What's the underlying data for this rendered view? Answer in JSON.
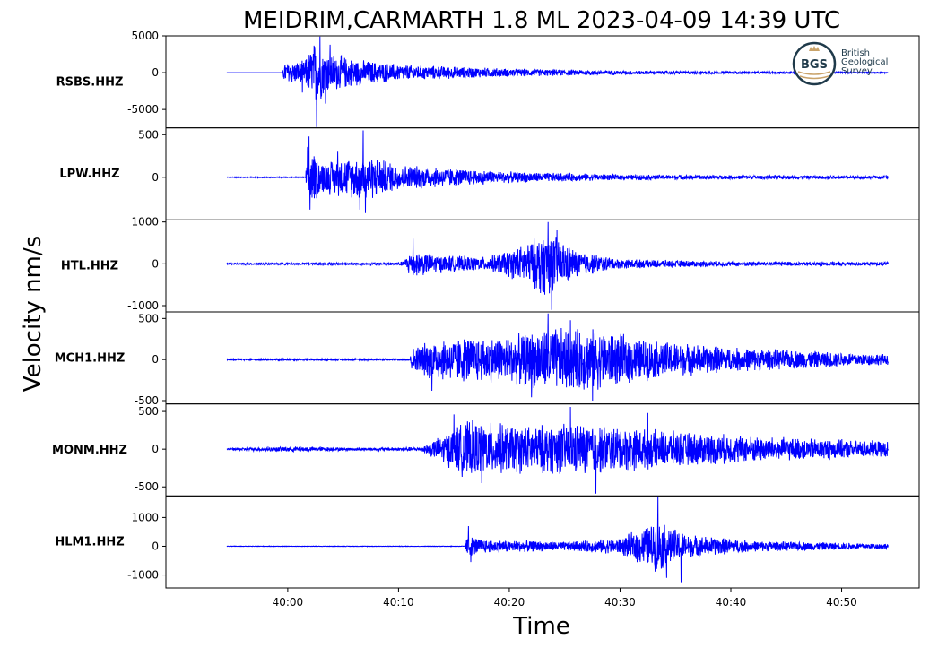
{
  "chart_data": {
    "type": "line",
    "title": "MEIDRIM,CARMARTH 1.8 ML   2023-04-09 14:39 UTC",
    "xlabel": "Time",
    "ylabel": "Velocity nm/s",
    "x_tick_labels": [
      "40:00",
      "40:10",
      "40:20",
      "40:30",
      "40:40",
      "40:50"
    ],
    "x_tick_seconds": [
      0,
      10,
      20,
      30,
      40,
      50
    ],
    "xlim_seconds": [
      -11,
      57
    ],
    "trace_span_seconds": [
      -5.5,
      54.2
    ],
    "line_color": "#0000ff",
    "grid": false,
    "logo": {
      "abbr": "BGS",
      "lines": [
        "British",
        "Geological",
        "Survey"
      ],
      "ring_color": "#1f3a4a",
      "accent_color": "#c9a36a"
    },
    "panels": [
      {
        "station": "RSBS.HHZ",
        "ylim": [
          -7500,
          5000
        ],
        "yticks": [
          5000,
          0,
          -5000
        ],
        "ytick_labels": [
          "5000",
          "0",
          "-5000"
        ],
        "envelope": [
          {
            "t": -5.5,
            "a": 0
          },
          {
            "t": -0.5,
            "a": 0
          },
          {
            "t": -0.3,
            "a": 1500
          },
          {
            "t": 1.5,
            "a": 1700
          },
          {
            "t": 2.5,
            "a": 4800
          },
          {
            "t": 3.5,
            "a": 3000
          },
          {
            "t": 6,
            "a": 2000
          },
          {
            "t": 10,
            "a": 1200
          },
          {
            "t": 20,
            "a": 600
          },
          {
            "t": 30,
            "a": 300
          },
          {
            "t": 40,
            "a": 180
          },
          {
            "t": 54.2,
            "a": 100
          }
        ],
        "spikes": [
          {
            "t": 2.9,
            "v": 4900
          },
          {
            "t": 2.6,
            "v": -7400
          },
          {
            "t": 3.8,
            "v": 3800
          },
          {
            "t": 3.4,
            "v": -4200
          },
          {
            "t": 1.3,
            "v": -2700
          }
        ]
      },
      {
        "station": "LPW.HHZ",
        "ylim": [
          -500,
          580
        ],
        "yticks": [
          500,
          0
        ],
        "ytick_labels": [
          "500",
          "0"
        ],
        "envelope": [
          {
            "t": -5.5,
            "a": 6
          },
          {
            "t": 1.6,
            "a": 6
          },
          {
            "t": 1.8,
            "a": 420
          },
          {
            "t": 3,
            "a": 200
          },
          {
            "t": 6,
            "a": 260
          },
          {
            "t": 7,
            "a": 300
          },
          {
            "t": 10,
            "a": 160
          },
          {
            "t": 20,
            "a": 70
          },
          {
            "t": 30,
            "a": 35
          },
          {
            "t": 40,
            "a": 25
          },
          {
            "t": 54.2,
            "a": 20
          }
        ],
        "spikes": [
          {
            "t": 1.9,
            "v": 480
          },
          {
            "t": 2.0,
            "v": -380
          },
          {
            "t": 6.8,
            "v": 550
          },
          {
            "t": 7.0,
            "v": -420
          },
          {
            "t": 6.5,
            "v": -380
          },
          {
            "t": 4.5,
            "v": 300
          }
        ]
      },
      {
        "station": "HTL.HHZ",
        "ylim": [
          -1150,
          1050
        ],
        "yticks": [
          1000,
          0,
          -1000
        ],
        "ytick_labels": [
          "1000",
          "0",
          "-1000"
        ],
        "envelope": [
          {
            "t": -5.5,
            "a": 25
          },
          {
            "t": 8.5,
            "a": 30
          },
          {
            "t": 10.5,
            "a": 60
          },
          {
            "t": 11,
            "a": 350
          },
          {
            "t": 14,
            "a": 220
          },
          {
            "t": 18,
            "a": 170
          },
          {
            "t": 21,
            "a": 450
          },
          {
            "t": 23.5,
            "a": 850
          },
          {
            "t": 26,
            "a": 350
          },
          {
            "t": 30,
            "a": 120
          },
          {
            "t": 40,
            "a": 60
          },
          {
            "t": 54.2,
            "a": 45
          }
        ],
        "spikes": [
          {
            "t": 11.3,
            "v": 600
          },
          {
            "t": 23.5,
            "v": 1000
          },
          {
            "t": 23.8,
            "v": -1100
          },
          {
            "t": 24.3,
            "v": 800
          },
          {
            "t": 22.8,
            "v": -700
          }
        ]
      },
      {
        "station": "MCH1.HHZ",
        "ylim": [
          -540,
          580
        ],
        "yticks": [
          500,
          0,
          -500
        ],
        "ytick_labels": [
          "500",
          "0",
          "-500"
        ],
        "envelope": [
          {
            "t": -5.5,
            "a": 10
          },
          {
            "t": 11,
            "a": 12
          },
          {
            "t": 11.2,
            "a": 150
          },
          {
            "t": 13,
            "a": 260
          },
          {
            "t": 16,
            "a": 300
          },
          {
            "t": 20,
            "a": 300
          },
          {
            "t": 23.5,
            "a": 420
          },
          {
            "t": 27.5,
            "a": 400
          },
          {
            "t": 33,
            "a": 250
          },
          {
            "t": 40,
            "a": 160
          },
          {
            "t": 54.2,
            "a": 70
          }
        ],
        "spikes": [
          {
            "t": 23.5,
            "v": 560
          },
          {
            "t": 27.5,
            "v": -500
          },
          {
            "t": 25.5,
            "v": 480
          },
          {
            "t": 22,
            "v": -460
          },
          {
            "t": 13,
            "v": -380
          }
        ]
      },
      {
        "station": "MONM.HHZ",
        "ylim": [
          -620,
          600
        ],
        "yticks": [
          500,
          0,
          -500
        ],
        "ytick_labels": [
          "500",
          "0",
          "-500"
        ],
        "envelope": [
          {
            "t": -5.5,
            "a": 12
          },
          {
            "t": 0,
            "a": 40
          },
          {
            "t": 7,
            "a": 18
          },
          {
            "t": 12,
            "a": 30
          },
          {
            "t": 14,
            "a": 200
          },
          {
            "t": 16,
            "a": 400
          },
          {
            "t": 22,
            "a": 330
          },
          {
            "t": 26,
            "a": 380
          },
          {
            "t": 34,
            "a": 260
          },
          {
            "t": 44,
            "a": 170
          },
          {
            "t": 54.2,
            "a": 110
          }
        ],
        "spikes": [
          {
            "t": 25.5,
            "v": 560
          },
          {
            "t": 27.8,
            "v": -590
          },
          {
            "t": 32.5,
            "v": 480
          },
          {
            "t": 17.5,
            "v": -450
          },
          {
            "t": 15,
            "v": 460
          }
        ]
      },
      {
        "station": "HLM1.HHZ",
        "ylim": [
          -1450,
          1750
        ],
        "yticks": [
          1000,
          0,
          -1000
        ],
        "ytick_labels": [
          "1000",
          "0",
          "-1000"
        ],
        "envelope": [
          {
            "t": -5.5,
            "a": 8
          },
          {
            "t": 16,
            "a": 10
          },
          {
            "t": 16.2,
            "a": 400
          },
          {
            "t": 18,
            "a": 250
          },
          {
            "t": 25,
            "a": 170
          },
          {
            "t": 30,
            "a": 300
          },
          {
            "t": 32,
            "a": 700
          },
          {
            "t": 33.5,
            "a": 950
          },
          {
            "t": 36,
            "a": 450
          },
          {
            "t": 42,
            "a": 200
          },
          {
            "t": 54.2,
            "a": 100
          }
        ],
        "spikes": [
          {
            "t": 16.3,
            "v": 700
          },
          {
            "t": 16.5,
            "v": -550
          },
          {
            "t": 33.4,
            "v": 1750
          },
          {
            "t": 35.5,
            "v": -1250
          },
          {
            "t": 34.2,
            "v": -1100
          }
        ]
      }
    ]
  }
}
